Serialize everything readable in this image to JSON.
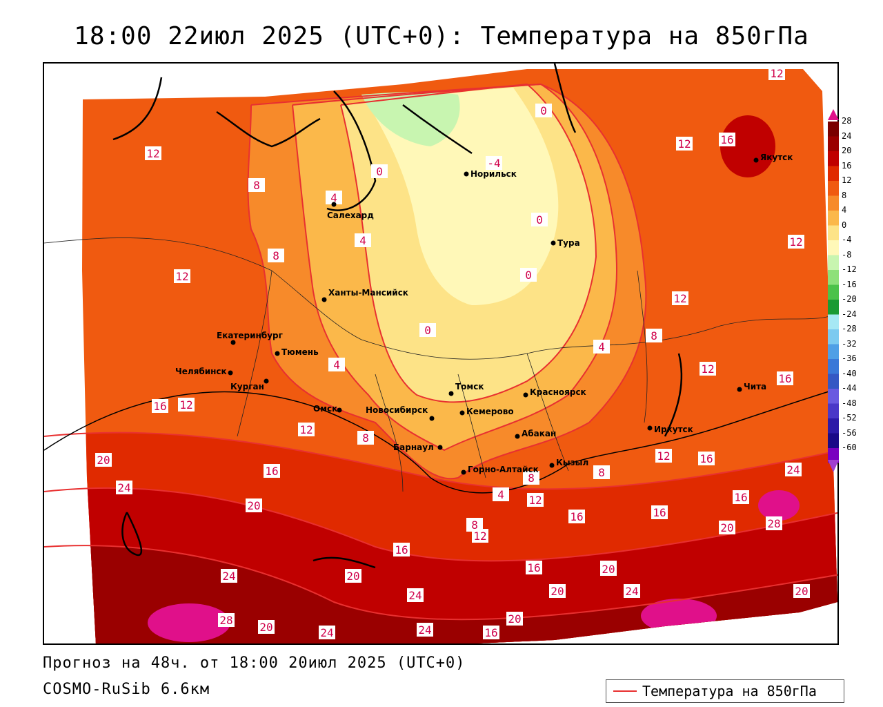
{
  "title": "18:00 22июл 2025 (UTC+0): Температура на 850гПа",
  "forecast_line": "Прогноз на 48ч. от 18:00 20июл 2025 (UTC+0)",
  "model_line": "COSMO-RuSib 6.6км",
  "legend": {
    "label": "Температура на 850гПа",
    "line_color": "#e83030"
  },
  "colorbar": {
    "labels": [
      "28",
      "24",
      "20",
      "16",
      "12",
      "8",
      "4",
      "0",
      "-4",
      "-8",
      "-12",
      "-16",
      "-20",
      "-24",
      "-28",
      "-32",
      "-36",
      "-40",
      "-44",
      "-48",
      "-52",
      "-56",
      "-60"
    ],
    "colors": [
      "#7a0000",
      "#9a0000",
      "#c00000",
      "#e02a00",
      "#f05a10",
      "#f78a2a",
      "#fbb84a",
      "#fde387",
      "#fff8b8",
      "#c8f5b0",
      "#8ee07a",
      "#4cc24a",
      "#1a9a34",
      "#a6e8f4",
      "#7ccaf0",
      "#4f9fe6",
      "#3a78d8",
      "#3558c4",
      "#6a5ae0",
      "#4a38c8",
      "#2c1aa8",
      "#1a0a88",
      "#7a00c0"
    ]
  },
  "cities": [
    {
      "name": "Норильск"
    },
    {
      "name": "Салехард"
    },
    {
      "name": "Тура"
    },
    {
      "name": "Ханты-Мансийск"
    },
    {
      "name": "Якутск"
    },
    {
      "name": "Екатеринбург"
    },
    {
      "name": "Тюмень"
    },
    {
      "name": "Челябинск"
    },
    {
      "name": "Курган"
    },
    {
      "name": "Омск"
    },
    {
      "name": "Томск"
    },
    {
      "name": "Красноярск"
    },
    {
      "name": "Новосибирск"
    },
    {
      "name": "Кемерово"
    },
    {
      "name": "Абакан"
    },
    {
      "name": "Барнаул"
    },
    {
      "name": "Иркутск"
    },
    {
      "name": "Чита"
    },
    {
      "name": "Кызыл"
    },
    {
      "name": "Горно-Алтайск"
    }
  ],
  "isotherm_labels": [
    "12",
    "12",
    "16",
    "12",
    "8",
    "8",
    "12",
    "12",
    "12",
    "16",
    "12",
    "16",
    "20",
    "24",
    "20",
    "16",
    "16",
    "12",
    "16",
    "12",
    "16",
    "20",
    "24",
    "28",
    "24",
    "20",
    "16",
    "20",
    "24",
    "28",
    "20",
    "24",
    "24",
    "16",
    "20",
    "24",
    "20",
    "20",
    "16",
    "20",
    "0",
    "-4",
    "0",
    "0",
    "0",
    "0",
    "4",
    "4",
    "4",
    "4",
    "8",
    "8",
    "8",
    "8",
    "12",
    "12",
    "16",
    "12",
    "8",
    "4"
  ]
}
